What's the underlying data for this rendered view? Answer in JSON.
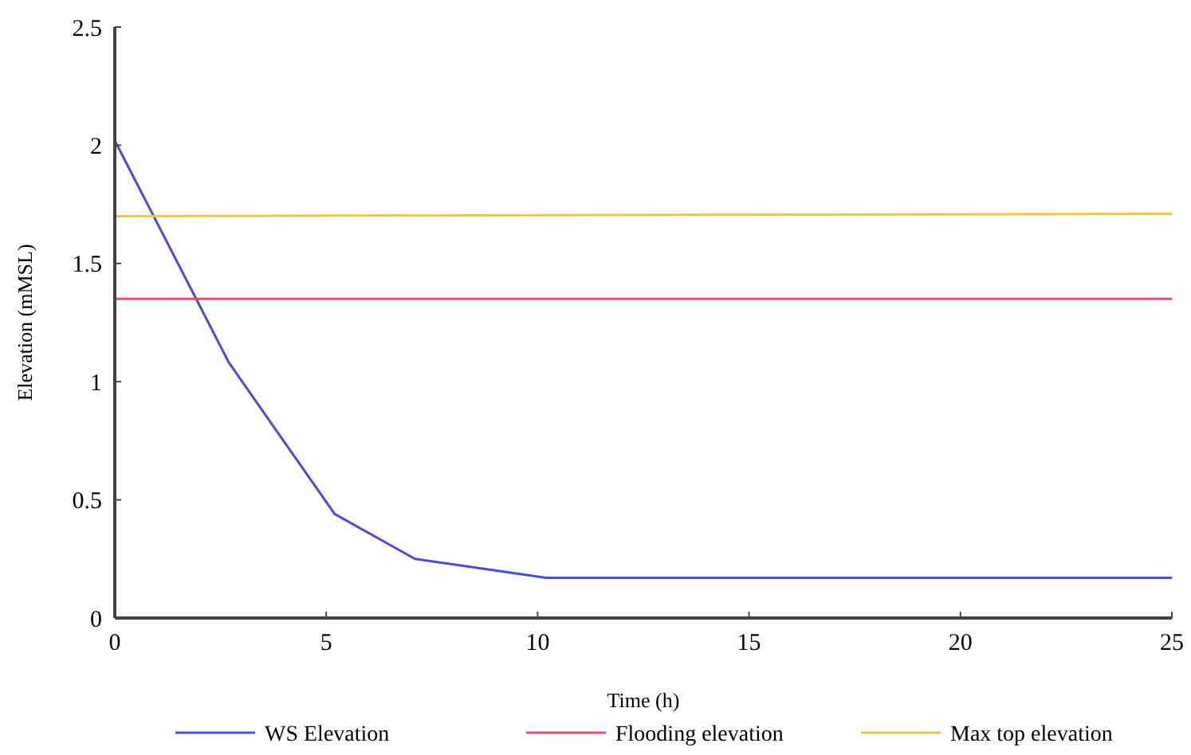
{
  "chart_data": {
    "type": "line",
    "xlabel": "Time (h)",
    "ylabel": "Elevation (mMSL)",
    "xlim": [
      0,
      25
    ],
    "xticks": [
      0,
      5,
      10,
      15,
      20,
      25
    ],
    "ylim": [
      0,
      2.5
    ],
    "yticks": [
      0,
      0.5,
      1,
      1.5,
      2,
      2.5
    ],
    "grid": false,
    "legend": "bottom",
    "line_style": "solid",
    "series": [
      {
        "name": "WS Elevation",
        "color": "#4b4bd6",
        "x": [
          0,
          2.7,
          5.2,
          7.1,
          10.2,
          25
        ],
        "values": [
          2.02,
          1.08,
          0.44,
          0.25,
          0.17,
          0.17
        ]
      },
      {
        "name": "Flooding elevation",
        "color": "#e0506e",
        "x": [
          0,
          25
        ],
        "values": [
          1.35,
          1.35
        ]
      },
      {
        "name": "Max top elevation",
        "color": "#e8c84a",
        "x": [
          0,
          25
        ],
        "values": [
          1.7,
          1.71
        ]
      }
    ]
  }
}
